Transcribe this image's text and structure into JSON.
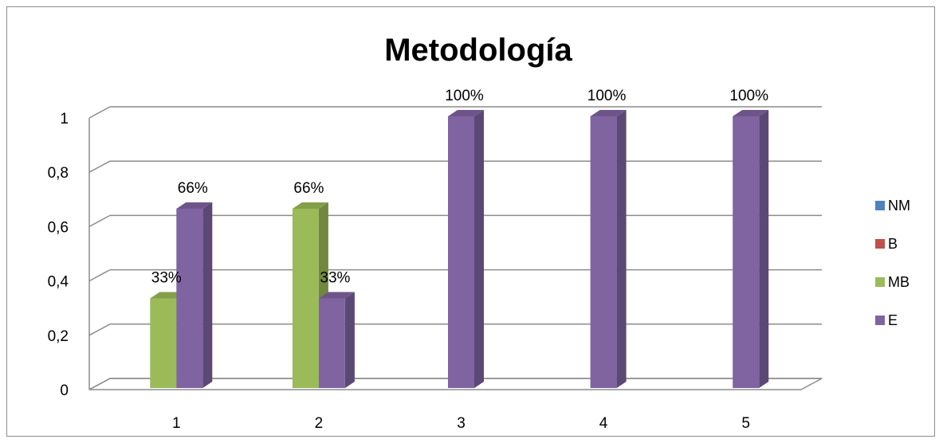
{
  "chart_data": {
    "type": "bar",
    "title": "Metodología",
    "categories": [
      "1",
      "2",
      "3",
      "4",
      "5"
    ],
    "series": [
      {
        "name": "NM",
        "color": "#4f81bd",
        "values": [
          0,
          0,
          0,
          0,
          0
        ]
      },
      {
        "name": "B",
        "color": "#c0504d",
        "values": [
          0,
          0,
          0,
          0,
          0
        ]
      },
      {
        "name": "MB",
        "color": "#9bbb59",
        "values": [
          0.33,
          0.66,
          0,
          0,
          0
        ]
      },
      {
        "name": "E",
        "color": "#8064a2",
        "values": [
          0.66,
          0.33,
          1,
          1,
          1
        ]
      }
    ],
    "data_labels": [
      {
        "series": "MB",
        "category": "1",
        "text": "33%"
      },
      {
        "series": "E",
        "category": "1",
        "text": "66%"
      },
      {
        "series": "MB",
        "category": "2",
        "text": "66%"
      },
      {
        "series": "E",
        "category": "2",
        "text": "33%"
      },
      {
        "series": "E",
        "category": "3",
        "text": "100%"
      },
      {
        "series": "E",
        "category": "4",
        "text": "100%"
      },
      {
        "series": "E",
        "category": "5",
        "text": "100%"
      }
    ],
    "y_ticks": [
      "0",
      "0,2",
      "0,4",
      "0,6",
      "0,8",
      "1"
    ],
    "ylim": [
      0,
      1
    ],
    "grid": true,
    "legend_position": "right",
    "style": "3d-column"
  }
}
